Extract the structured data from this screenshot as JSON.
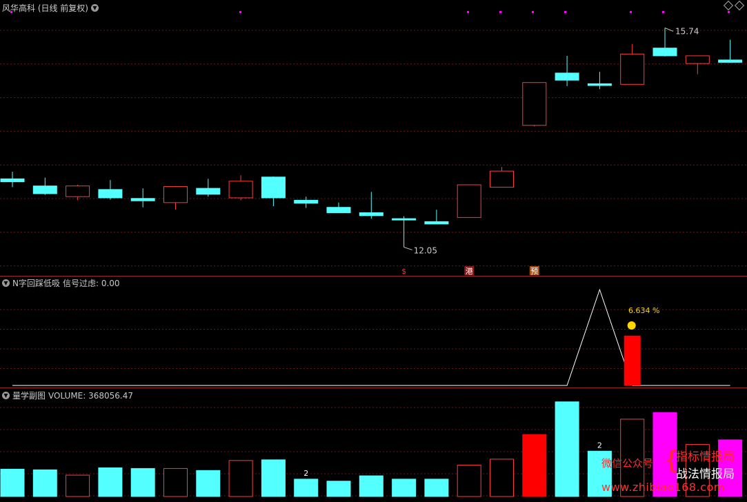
{
  "header": {
    "main_title": "风华高科 (日线 前复权)",
    "panel2_title": "N字回踩低吸",
    "panel2_signal": "信号过虑: 0.00",
    "panel3_title": "量学副图",
    "panel3_value": "VOLUME: 368056.47"
  },
  "colors": {
    "up": "#ff3b3b",
    "down": "#54ffff",
    "grid": "#6a1a1a",
    "vol_magenta": "#ff00ff",
    "vol_red": "#ff0000"
  },
  "chart_data": [
    {
      "type": "candlestick",
      "title": "风华高科 (日线 前复权)",
      "price_range": [
        11.8,
        16.0
      ],
      "series": [
        {
          "o": 13.2,
          "h": 13.32,
          "l": 13.06,
          "c": 13.15
        },
        {
          "o": 13.08,
          "h": 13.22,
          "l": 12.93,
          "c": 12.95
        },
        {
          "o": 12.9,
          "h": 13.1,
          "l": 12.84,
          "c": 13.08
        },
        {
          "o": 13.02,
          "h": 13.18,
          "l": 12.85,
          "c": 12.88
        },
        {
          "o": 12.87,
          "h": 13.04,
          "l": 12.72,
          "c": 12.83
        },
        {
          "o": 12.8,
          "h": 13.08,
          "l": 12.68,
          "c": 13.07
        },
        {
          "o": 13.04,
          "h": 13.2,
          "l": 12.9,
          "c": 12.94
        },
        {
          "o": 12.88,
          "h": 13.26,
          "l": 12.84,
          "c": 13.16
        },
        {
          "o": 13.23,
          "h": 13.24,
          "l": 12.74,
          "c": 12.88
        },
        {
          "o": 12.84,
          "h": 12.9,
          "l": 12.71,
          "c": 12.79
        },
        {
          "o": 12.72,
          "h": 12.8,
          "l": 12.63,
          "c": 12.63
        },
        {
          "o": 12.63,
          "h": 12.98,
          "l": 12.53,
          "c": 12.58
        },
        {
          "o": 12.53,
          "h": 12.57,
          "l": 12.05,
          "c": 12.52
        },
        {
          "o": 12.48,
          "h": 12.68,
          "l": 12.45,
          "c": 12.44
        },
        {
          "o": 12.55,
          "h": 13.1,
          "l": 12.55,
          "c": 13.1
        },
        {
          "o": 13.06,
          "h": 13.4,
          "l": 13.06,
          "c": 13.33
        },
        {
          "o": 14.1,
          "h": 14.82,
          "l": 14.08,
          "c": 14.82
        },
        {
          "o": 14.98,
          "h": 15.27,
          "l": 14.76,
          "c": 14.86
        },
        {
          "o": 14.8,
          "h": 15.0,
          "l": 14.71,
          "c": 14.77
        },
        {
          "o": 14.79,
          "h": 15.47,
          "l": 14.79,
          "c": 15.3
        },
        {
          "o": 15.4,
          "h": 15.74,
          "l": 15.26,
          "c": 15.27
        },
        {
          "o": 15.14,
          "h": 15.24,
          "l": 14.96,
          "c": 15.27
        },
        {
          "o": 15.2,
          "h": 15.54,
          "l": 15.15,
          "c": 15.16
        }
      ],
      "annotations": {
        "high_label": "15.74",
        "low_label": "12.05",
        "markers": [
          "$",
          "港",
          "预"
        ]
      }
    },
    {
      "type": "line",
      "title": "N字回踩低吸",
      "value_label": "6.634 %",
      "line_values": [
        0,
        0,
        0,
        0,
        0,
        0,
        0,
        0,
        0,
        0,
        0,
        0,
        0,
        0,
        0,
        0,
        0,
        0,
        1,
        0,
        0,
        0,
        0
      ],
      "bar": {
        "index": 19,
        "value": 0.52
      }
    },
    {
      "type": "bar",
      "title": "量学副图",
      "volume": [
        41,
        40,
        32,
        43,
        42,
        42,
        39,
        54,
        55,
        26,
        23,
        31,
        26,
        26,
        47,
        56,
        93,
        142,
        68,
        116,
        126,
        78,
        85
      ],
      "vol_max": 150,
      "labels": {
        "9": "2",
        "18": "2"
      }
    }
  ],
  "watermark": {
    "line1": "微信公众号",
    "line2": "指标情报局",
    "line3": "战法情报局",
    "url": "www.zhibiao168.com"
  }
}
